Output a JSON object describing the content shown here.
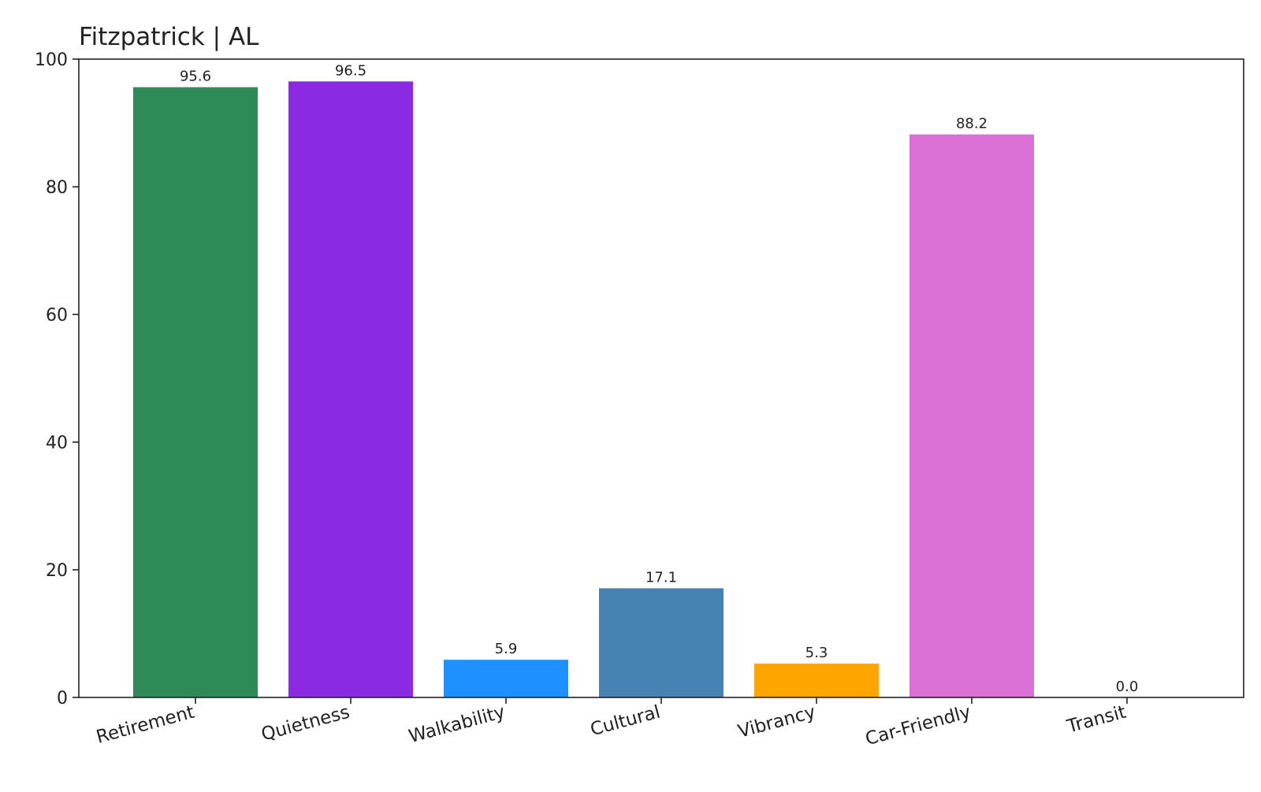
{
  "chart_data": {
    "type": "bar",
    "title": "Fitzpatrick | AL",
    "xlabel": "",
    "ylabel": "",
    "categories": [
      "Retirement",
      "Quietness",
      "Walkability",
      "Cultural",
      "Vibrancy",
      "Car-Friendly",
      "Transit"
    ],
    "values": [
      95.6,
      96.5,
      5.9,
      17.1,
      5.3,
      88.2,
      0.0
    ],
    "data_labels": [
      "95.6",
      "96.5",
      "5.9",
      "17.1",
      "5.3",
      "88.2",
      "0.0"
    ],
    "colors": [
      "#2e8b57",
      "#8a2be2",
      "#1e90ff",
      "#4682b4",
      "#ffa500",
      "#da70d6",
      "#808080"
    ],
    "ylim": [
      0,
      100
    ],
    "yticks": [
      0,
      20,
      40,
      60,
      80,
      100
    ],
    "ytick_labels": [
      "0",
      "20",
      "40",
      "60",
      "80",
      "100"
    ],
    "grid": false,
    "legend": "none"
  }
}
